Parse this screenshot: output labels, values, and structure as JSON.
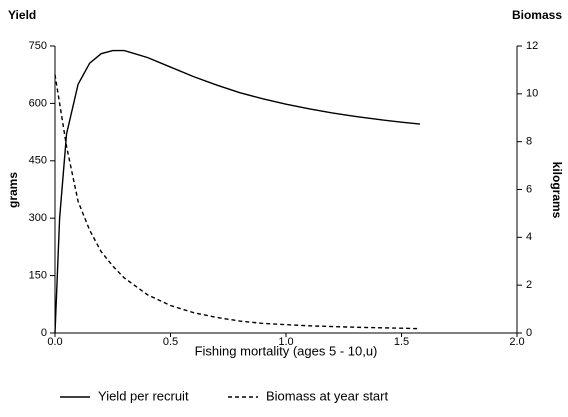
{
  "chart_data": {
    "type": "line",
    "y_title": "Yield",
    "y2_title": "Biomass",
    "y_label": "grams",
    "y2_label": "kilograms",
    "x_label": "Fishing mortality (ages 5 - 10,u)",
    "x": [
      0,
      0.02,
      0.05,
      0.1,
      0.15,
      0.2,
      0.25,
      0.3,
      0.4,
      0.5,
      0.6,
      0.7,
      0.8,
      0.9,
      1.0,
      1.1,
      1.2,
      1.3,
      1.4,
      1.5,
      1.58
    ],
    "series": [
      {
        "name": "Yield per recruit",
        "color": "#000000",
        "style": "solid",
        "values": [
          0,
          300,
          520,
          650,
          705,
          730,
          738,
          738,
          720,
          695,
          670,
          648,
          628,
          612,
          598,
          586,
          575,
          566,
          558,
          551,
          546
        ]
      },
      {
        "name": "Biomass at year start",
        "color": "#000000",
        "style": "dashed",
        "axis": "y2",
        "values": [
          10.8,
          9.6,
          7.8,
          5.5,
          4.3,
          3.4,
          2.8,
          2.3,
          1.6,
          1.15,
          0.85,
          0.65,
          0.5,
          0.4,
          0.35,
          0.3,
          0.27,
          0.24,
          0.22,
          0.2,
          0.18
        ]
      }
    ],
    "xlim": [
      0,
      2
    ],
    "xticks": [
      {
        "value": 0,
        "label": "0.0"
      },
      0.5,
      {
        "value": 1,
        "label": "1.0"
      },
      1.5,
      {
        "value": 2,
        "label": "2.0"
      }
    ],
    "ylim": [
      0,
      750
    ],
    "yticks": [
      0,
      150,
      300,
      450,
      600,
      750
    ],
    "y2lim": [
      0,
      12
    ],
    "y2ticks": [
      0,
      2,
      4,
      6,
      8,
      10,
      12
    ]
  }
}
